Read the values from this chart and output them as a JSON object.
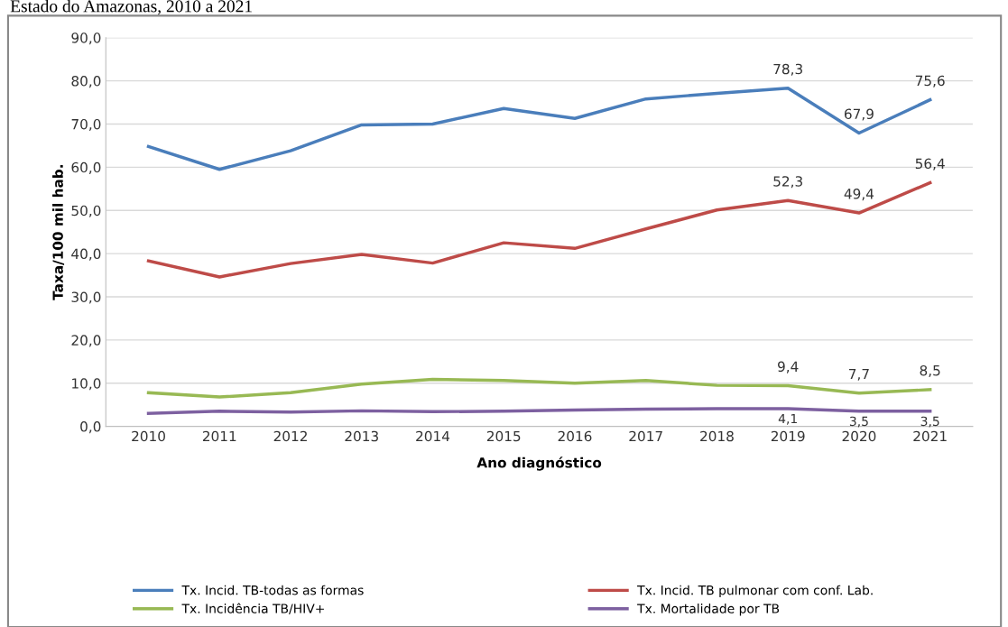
{
  "chart_data": {
    "type": "line",
    "title": "Estado do Amazonas, 2010 a 2021",
    "xlabel": "Ano diagnóstico",
    "ylabel": "Taxa/100 mil hab.",
    "categories": [
      "2010",
      "2011",
      "2012",
      "2013",
      "2014",
      "2015",
      "2016",
      "2017",
      "2018",
      "2019",
      "2020",
      "2021"
    ],
    "series": [
      {
        "name": "Tx. Incid. TB-todas as formas",
        "color": "#4a7ebb",
        "values": [
          64.8,
          59.5,
          63.8,
          69.8,
          70.0,
          73.6,
          71.3,
          75.8,
          77.1,
          78.3,
          67.9,
          75.6
        ],
        "value_labels": [
          null,
          null,
          null,
          null,
          null,
          null,
          null,
          null,
          null,
          "78,3",
          "67,9",
          "75,6"
        ]
      },
      {
        "name": "Tx. Incid. TB pulmonar com conf. Lab.",
        "color": "#be4b48",
        "values": [
          38.3,
          34.6,
          37.7,
          39.8,
          37.8,
          42.5,
          41.2,
          45.7,
          50.1,
          52.3,
          49.4,
          56.4
        ],
        "value_labels": [
          null,
          null,
          null,
          null,
          null,
          null,
          null,
          null,
          null,
          "52,3",
          "49,4",
          "56,4"
        ]
      },
      {
        "name": "Tx. Incidência TB/HIV+",
        "color": "#98b954",
        "values": [
          7.8,
          6.8,
          7.8,
          9.8,
          10.9,
          10.6,
          10.0,
          10.6,
          9.5,
          9.4,
          7.7,
          8.5
        ],
        "value_labels": [
          null,
          null,
          null,
          null,
          null,
          null,
          null,
          null,
          null,
          "9,4",
          "7,7",
          "8,5"
        ]
      },
      {
        "name": "Tx. Mortalidade por TB",
        "color": "#7d60a0",
        "values": [
          3.0,
          3.5,
          3.3,
          3.6,
          3.4,
          3.5,
          3.8,
          4.0,
          4.1,
          4.1,
          3.5,
          3.5
        ],
        "value_labels": [
          null,
          null,
          null,
          null,
          null,
          null,
          null,
          null,
          null,
          "4,1",
          "3,5",
          "3,5"
        ]
      }
    ],
    "ylim": [
      0,
      90
    ],
    "yticks": [
      {
        "value": 0,
        "label": "0,0"
      },
      {
        "value": 10,
        "label": "10,0"
      },
      {
        "value": 20,
        "label": "20,0"
      },
      {
        "value": 30,
        "label": "30,0"
      },
      {
        "value": 40,
        "label": "40,0"
      },
      {
        "value": 50,
        "label": "50,0"
      },
      {
        "value": 60,
        "label": "60,0"
      },
      {
        "value": 70,
        "label": "70,0"
      },
      {
        "value": 80,
        "label": "80,0"
      },
      {
        "value": 90,
        "label": "90,0"
      }
    ],
    "grid": "y",
    "legend": "bottom",
    "marker": "none",
    "line_style": "solid"
  }
}
